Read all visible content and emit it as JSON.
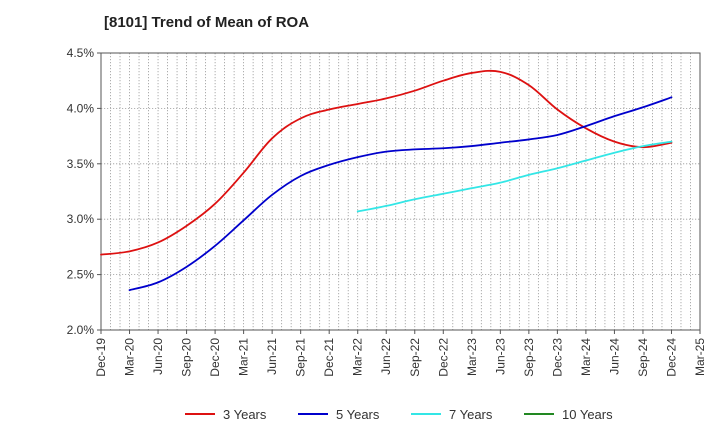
{
  "chart_data": {
    "type": "line",
    "title": "[8101]  Trend of Mean of ROA",
    "xlabel": "",
    "ylabel": "",
    "x": [
      "Dec-19",
      "Mar-20",
      "Jun-20",
      "Sep-20",
      "Dec-20",
      "Mar-21",
      "Jun-21",
      "Sep-21",
      "Dec-21",
      "Mar-22",
      "Jun-22",
      "Sep-22",
      "Dec-22",
      "Mar-23",
      "Jun-23",
      "Sep-23",
      "Dec-23",
      "Mar-24",
      "Jun-24",
      "Sep-24",
      "Dec-24",
      "Mar-25"
    ],
    "ylim": [
      2.0,
      4.5
    ],
    "yticks": [
      2.0,
      2.5,
      3.0,
      3.5,
      4.0,
      4.5
    ],
    "ytick_labels": [
      "2.0%",
      "2.5%",
      "3.0%",
      "3.5%",
      "4.0%",
      "4.5%"
    ],
    "grid": true,
    "legend_position": "bottom",
    "series": [
      {
        "name": "3 Years",
        "color": "#dd1111",
        "values": [
          2.68,
          2.71,
          2.79,
          2.94,
          3.14,
          3.42,
          3.73,
          3.91,
          3.99,
          4.04,
          4.09,
          4.16,
          4.25,
          4.32,
          4.33,
          4.21,
          3.99,
          3.82,
          3.7,
          3.65,
          3.69,
          null
        ]
      },
      {
        "name": "5 Years",
        "color": "#0000cc",
        "values": [
          null,
          2.36,
          2.43,
          2.57,
          2.76,
          2.99,
          3.22,
          3.39,
          3.49,
          3.56,
          3.61,
          3.63,
          3.64,
          3.66,
          3.69,
          3.72,
          3.76,
          3.84,
          3.93,
          4.01,
          4.1,
          null
        ]
      },
      {
        "name": "7 Years",
        "color": "#33e6e6",
        "values": [
          null,
          null,
          null,
          null,
          null,
          null,
          null,
          null,
          null,
          3.07,
          3.12,
          3.18,
          3.23,
          3.28,
          3.33,
          3.4,
          3.46,
          3.53,
          3.6,
          3.66,
          3.7,
          null
        ]
      },
      {
        "name": "10 Years",
        "color": "#228822",
        "values": [
          null,
          null,
          null,
          null,
          null,
          null,
          null,
          null,
          null,
          null,
          null,
          null,
          null,
          null,
          null,
          null,
          null,
          null,
          null,
          null,
          null,
          null
        ]
      }
    ]
  }
}
